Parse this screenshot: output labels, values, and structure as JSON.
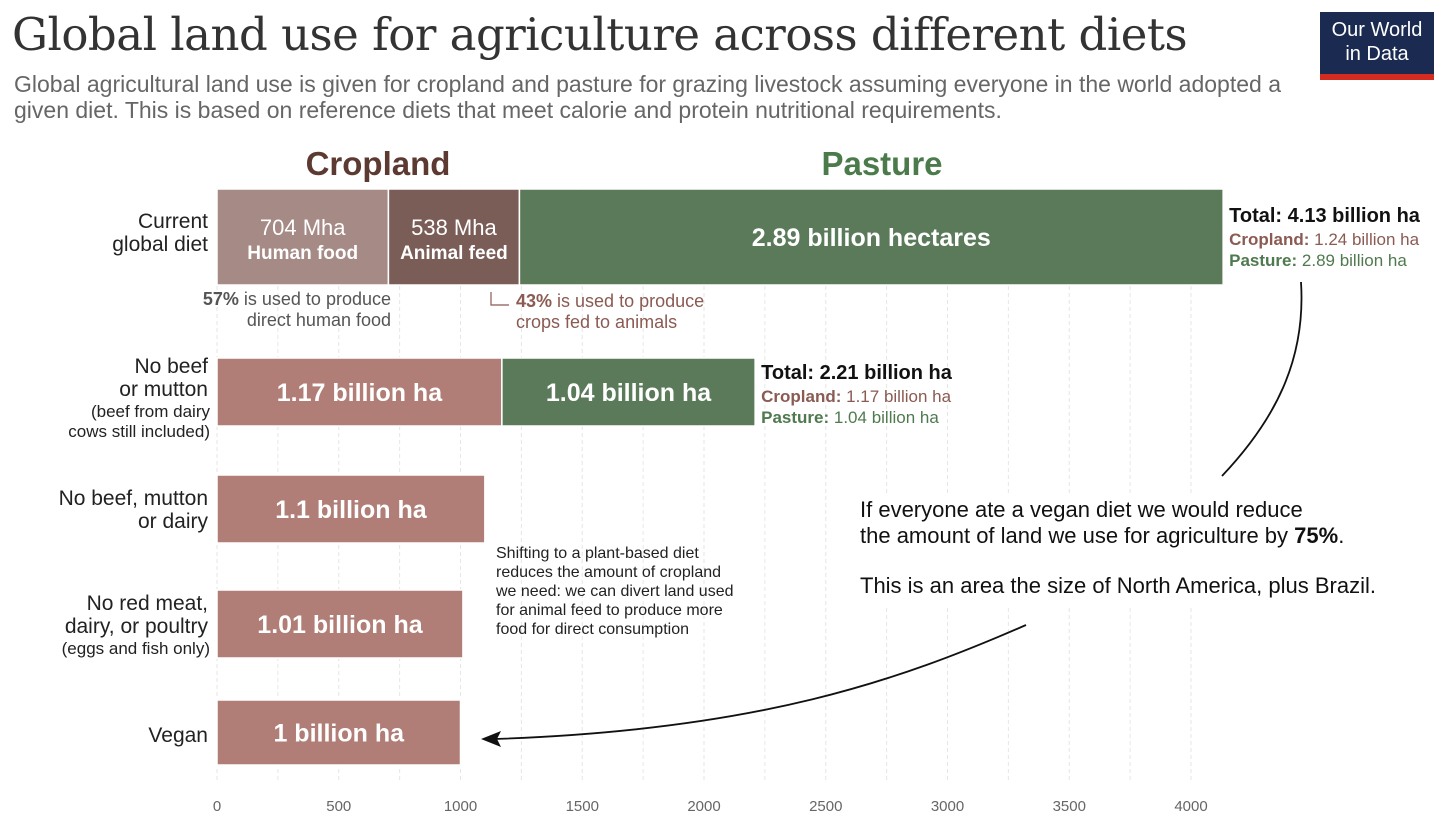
{
  "header": {
    "title": "Global land use for agriculture across different diets",
    "subtitle": "Global agricultural land use is given for cropland and pasture for grazing livestock assuming everyone in the world adopted a given diet. This is based on reference diets that meet calorie and protein nutritional requirements.",
    "logo_line1": "Our World",
    "logo_line2": "in Data"
  },
  "colors": {
    "cropland": "#b07e76",
    "cropland_human": "#a58a85",
    "cropland_feed": "#7b5d58",
    "pasture": "#5a7a5a",
    "cropland_text": "#8b5a52",
    "pasture_text": "#4f7a4f",
    "cropland_heading": "#5c3a32",
    "pasture_heading": "#4b7b4b"
  },
  "chart_data": {
    "type": "bar",
    "orientation": "horizontal",
    "stacked": true,
    "units": "Mha",
    "xlim": [
      0,
      4150
    ],
    "xticks": [
      0,
      500,
      1000,
      1500,
      2000,
      2500,
      3000,
      3500,
      4000
    ],
    "grid": true,
    "section_headers": {
      "cropland": "Cropland",
      "pasture": "Pasture"
    },
    "rows": [
      {
        "label_lines": [
          "Current",
          "global diet"
        ],
        "sublabel_lines": [],
        "segments": [
          {
            "kind": "human",
            "value": 704,
            "label": "704 Mha",
            "sublabel": "Human food"
          },
          {
            "kind": "feed",
            "value": 538,
            "label": "538 Mha",
            "sublabel": "Animal feed"
          },
          {
            "kind": "pasture",
            "value": 2890,
            "label": "2.89 billion hectares",
            "sublabel": ""
          }
        ],
        "total": {
          "title": "Total: 4.13 billion ha",
          "crop_key": "Cropland:",
          "crop_val": "1.24 billion ha",
          "past_key": "Pasture:",
          "past_val": "2.89 billion ha"
        }
      },
      {
        "label_lines": [
          "No beef",
          "or mutton"
        ],
        "sublabel_lines": [
          "(beef from dairy",
          "cows still included)"
        ],
        "segments": [
          {
            "kind": "crop",
            "value": 1170,
            "label": "1.17 billion ha",
            "sublabel": ""
          },
          {
            "kind": "pasture",
            "value": 1040,
            "label": "1.04 billion ha",
            "sublabel": ""
          }
        ],
        "total": {
          "title": "Total: 2.21 billion ha",
          "crop_key": "Cropland:",
          "crop_val": "1.17 billion ha",
          "past_key": "Pasture:",
          "past_val": "1.04 billion ha"
        }
      },
      {
        "label_lines": [
          "No beef, mutton",
          "or dairy"
        ],
        "sublabel_lines": [],
        "segments": [
          {
            "kind": "crop",
            "value": 1100,
            "label": "1.1 billion ha",
            "sublabel": ""
          }
        ],
        "total": null
      },
      {
        "label_lines": [
          "No red meat,",
          "dairy, or poultry"
        ],
        "sublabel_lines": [
          "(eggs and fish only)"
        ],
        "segments": [
          {
            "kind": "crop",
            "value": 1010,
            "label": "1.01 billion ha",
            "sublabel": ""
          }
        ],
        "total": null
      },
      {
        "label_lines": [
          "Vegan"
        ],
        "sublabel_lines": [],
        "segments": [
          {
            "kind": "crop",
            "value": 1000,
            "label": "1 billion ha",
            "sublabel": ""
          }
        ],
        "total": null
      }
    ]
  },
  "annotations": {
    "note_57_pct": "57%",
    "note_57_line1": " is used to produce",
    "note_57_line2": "direct human food",
    "note_43_pct": "43%",
    "note_43_line1": " is used to produce",
    "note_43_line2": "crops fed to animals",
    "shift_lines": [
      "Shifting to a plant-based diet",
      "reduces the amount of cropland",
      "we need: we can divert land used",
      "for animal feed to produce more",
      "food for direct consumption"
    ],
    "vegan_line1": "If everyone ate a vegan diet we would reduce",
    "vegan_line2_pre": "the amount of land we use for agriculture by ",
    "vegan_line2_bold": "75%",
    "vegan_line2_post": ".",
    "vegan_line3": "This is an area the size of North America, plus Brazil."
  }
}
